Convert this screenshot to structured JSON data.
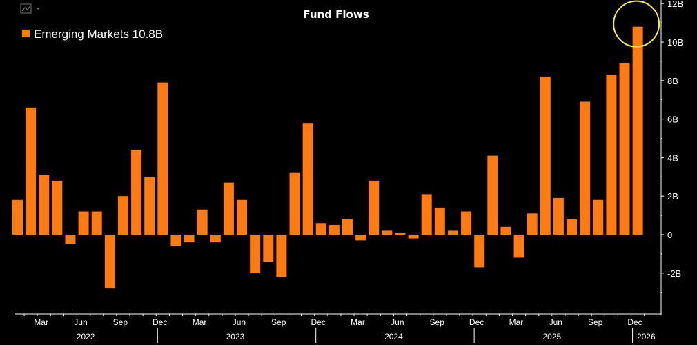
{
  "colors": {
    "background": "#000000",
    "bar": "#ff7a10",
    "highlight_circle": "#f2ee3a",
    "text": "#ffffff",
    "axis": "#ffffff",
    "icon": "#777777"
  },
  "toolbar": {
    "chart_type_icon": "line-chart-icon",
    "dropdown_icon": "chevron-down-icon"
  },
  "chart_data": {
    "type": "bar",
    "title": "Fund Flows",
    "legend": [
      {
        "label": "Emerging Markets 10.8B",
        "color": "#ff7a10"
      }
    ],
    "legend_position": "top-left",
    "y_axis_position": "right",
    "ylim": [
      -4.2,
      12.3
    ],
    "ytick_values": [
      12,
      10,
      8,
      6,
      4,
      2,
      0,
      -2
    ],
    "ytick_labels": [
      "12B",
      "10B",
      "8B",
      "6B",
      "4B",
      "2B",
      "0",
      "-2B"
    ],
    "grid": false,
    "x_start": "2022-02",
    "month_labels": [
      "Mar",
      "Jun",
      "Sep",
      "Dec",
      "Mar",
      "Jun",
      "Sep",
      "Dec",
      "Mar",
      "Jun",
      "Sep",
      "Dec",
      "Mar",
      "Jun",
      "Sep",
      "Dec"
    ],
    "year_labels": [
      "2022",
      "2023",
      "2024",
      "2025",
      "2026"
    ],
    "values": [
      1.8,
      6.6,
      3.1,
      2.8,
      -0.5,
      1.2,
      1.2,
      -2.8,
      2.0,
      4.4,
      3.0,
      7.9,
      -0.6,
      -0.4,
      1.3,
      -0.4,
      2.7,
      1.8,
      -2.0,
      -1.4,
      -2.2,
      3.2,
      5.8,
      0.6,
      0.5,
      0.8,
      -0.3,
      2.8,
      0.2,
      0.1,
      -0.2,
      2.1,
      1.4,
      0.2,
      1.2,
      -1.7,
      4.1,
      0.4,
      -1.2,
      1.1,
      8.2,
      1.9,
      0.8,
      6.9,
      1.8,
      8.3,
      8.9,
      10.8
    ],
    "highlight": {
      "index": 47,
      "shape": "circle",
      "color": "#f2ee3a"
    }
  }
}
